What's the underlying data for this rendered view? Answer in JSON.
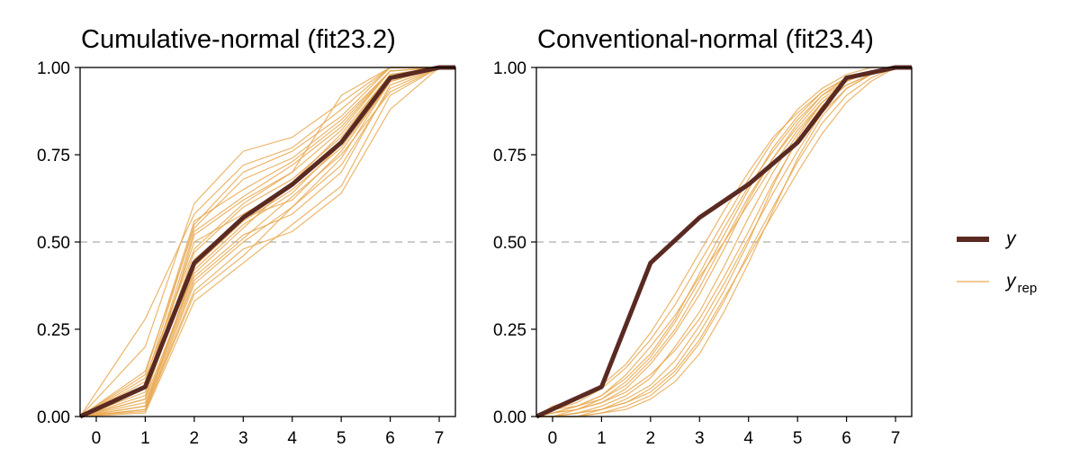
{
  "colors": {
    "y": "#5a2a22",
    "yrep": "#e9a951",
    "ref_line": "#999999"
  },
  "legend": {
    "position": "right",
    "items": [
      {
        "label": "y",
        "key": "y"
      },
      {
        "label": "y",
        "sub": "rep",
        "key": "yrep"
      }
    ]
  },
  "chart_data": [
    {
      "type": "line",
      "title": "Cumulative-normal (fit23.2)",
      "xlim": [
        -0.33,
        7.33
      ],
      "ylim": [
        0,
        1
      ],
      "xticks": [
        "0",
        "1",
        "2",
        "3",
        "4",
        "5",
        "6",
        "7"
      ],
      "yticks": [
        "0.00",
        "0.25",
        "0.50",
        "0.75",
        "1.00"
      ],
      "hline": 0.5,
      "grid": false,
      "y": {
        "x": [
          -0.33,
          1,
          2,
          3,
          4,
          5,
          6,
          7,
          7.33
        ],
        "values": [
          0,
          0.085,
          0.44,
          0.57,
          0.665,
          0.785,
          0.97,
          1,
          1
        ]
      },
      "yrep_x": [
        -0.33,
        1,
        2,
        3,
        4,
        5,
        6,
        7,
        7.33
      ],
      "yrep": [
        [
          0,
          0.05,
          0.52,
          0.62,
          0.7,
          0.82,
          0.99,
          1,
          1
        ],
        [
          0,
          0.02,
          0.38,
          0.5,
          0.6,
          0.74,
          0.96,
          1,
          1
        ],
        [
          0,
          0.1,
          0.55,
          0.7,
          0.76,
          0.86,
          1.0,
          1,
          1
        ],
        [
          0,
          0.03,
          0.42,
          0.55,
          0.64,
          0.78,
          0.97,
          1,
          1
        ],
        [
          0,
          0.2,
          0.61,
          0.76,
          0.8,
          0.9,
          1.0,
          1,
          1
        ],
        [
          0,
          0.01,
          0.33,
          0.44,
          0.55,
          0.66,
          0.92,
          1,
          1
        ],
        [
          0,
          0.07,
          0.47,
          0.6,
          0.68,
          0.8,
          0.98,
          1,
          1
        ],
        [
          0,
          0.12,
          0.56,
          0.65,
          0.73,
          0.84,
          0.99,
          1,
          1
        ],
        [
          0,
          0.04,
          0.4,
          0.52,
          0.58,
          0.7,
          0.95,
          1,
          1
        ],
        [
          0,
          0.02,
          0.36,
          0.48,
          0.53,
          0.64,
          0.88,
          1,
          1
        ],
        [
          0,
          0.09,
          0.5,
          0.58,
          0.66,
          0.79,
          0.97,
          1,
          1
        ],
        [
          0,
          0.28,
          0.58,
          0.72,
          0.77,
          0.88,
          1.0,
          1,
          1
        ],
        [
          0,
          0.06,
          0.45,
          0.57,
          0.62,
          0.76,
          0.96,
          1,
          1
        ],
        [
          0,
          0.015,
          0.35,
          0.46,
          0.6,
          0.72,
          0.94,
          1,
          1
        ],
        [
          0,
          0.08,
          0.53,
          0.63,
          0.72,
          0.83,
          0.99,
          1,
          1
        ],
        [
          0,
          0.05,
          0.41,
          0.54,
          0.67,
          0.81,
          0.98,
          1,
          1
        ],
        [
          0,
          0.11,
          0.48,
          0.61,
          0.7,
          0.92,
          1.0,
          1,
          1
        ],
        [
          0,
          0.03,
          0.39,
          0.51,
          0.63,
          0.75,
          0.93,
          1,
          1
        ],
        [
          0,
          0.13,
          0.54,
          0.68,
          0.74,
          0.85,
          0.99,
          1,
          1
        ],
        [
          0,
          0.02,
          0.43,
          0.56,
          0.65,
          0.77,
          0.96,
          1,
          1
        ]
      ]
    },
    {
      "type": "line",
      "title": "Conventional-normal (fit23.4)",
      "xlim": [
        -0.33,
        7.33
      ],
      "ylim": [
        0,
        1
      ],
      "xticks": [
        "0",
        "1",
        "2",
        "3",
        "4",
        "5",
        "6",
        "7"
      ],
      "yticks": [
        "0.00",
        "0.25",
        "0.50",
        "0.75",
        "1.00"
      ],
      "hline": 0.5,
      "grid": false,
      "y": {
        "x": [
          -0.33,
          1,
          2,
          3,
          4,
          5,
          6,
          7,
          7.33
        ],
        "values": [
          0,
          0.085,
          0.44,
          0.57,
          0.665,
          0.785,
          0.97,
          1,
          1
        ]
      },
      "yrep_x": [
        -0.33,
        0,
        0.5,
        1,
        1.5,
        2,
        2.5,
        3,
        3.5,
        4,
        4.5,
        5,
        5.5,
        6,
        6.5,
        7,
        7.33
      ],
      "yrep": [
        [
          0,
          0.0,
          0.01,
          0.02,
          0.05,
          0.09,
          0.16,
          0.26,
          0.38,
          0.51,
          0.64,
          0.76,
          0.87,
          0.94,
          0.98,
          1,
          1
        ],
        [
          0,
          0.01,
          0.02,
          0.05,
          0.1,
          0.17,
          0.27,
          0.39,
          0.52,
          0.65,
          0.77,
          0.86,
          0.93,
          0.97,
          0.99,
          1,
          1
        ],
        [
          0,
          0.0,
          0.0,
          0.01,
          0.03,
          0.06,
          0.12,
          0.21,
          0.33,
          0.47,
          0.6,
          0.73,
          0.84,
          0.92,
          0.97,
          1,
          1
        ],
        [
          0,
          0.02,
          0.04,
          0.08,
          0.14,
          0.22,
          0.32,
          0.44,
          0.56,
          0.68,
          0.79,
          0.88,
          0.94,
          0.98,
          1.0,
          1,
          1
        ],
        [
          0,
          0.0,
          0.01,
          0.03,
          0.06,
          0.11,
          0.2,
          0.3,
          0.43,
          0.57,
          0.7,
          0.81,
          0.9,
          0.96,
          0.99,
          1,
          1
        ],
        [
          0,
          0.01,
          0.03,
          0.06,
          0.12,
          0.2,
          0.29,
          0.4,
          0.5,
          0.61,
          0.72,
          0.82,
          0.9,
          0.95,
          0.98,
          1,
          1
        ],
        [
          0,
          0.0,
          0.0,
          0.02,
          0.04,
          0.08,
          0.14,
          0.24,
          0.36,
          0.5,
          0.66,
          0.8,
          0.9,
          0.96,
          0.99,
          1,
          1
        ],
        [
          0,
          0.03,
          0.05,
          0.09,
          0.15,
          0.24,
          0.35,
          0.47,
          0.59,
          0.7,
          0.8,
          0.87,
          0.93,
          0.97,
          0.99,
          1,
          1
        ],
        [
          0,
          0.0,
          0.01,
          0.02,
          0.04,
          0.07,
          0.13,
          0.22,
          0.34,
          0.46,
          0.58,
          0.7,
          0.81,
          0.9,
          0.96,
          1,
          1
        ],
        [
          0,
          0.01,
          0.02,
          0.04,
          0.08,
          0.15,
          0.24,
          0.35,
          0.48,
          0.62,
          0.74,
          0.84,
          0.92,
          0.97,
          0.99,
          1,
          1
        ],
        [
          0,
          0.0,
          0.02,
          0.04,
          0.07,
          0.12,
          0.19,
          0.28,
          0.4,
          0.53,
          0.67,
          0.79,
          0.89,
          0.95,
          0.98,
          1,
          1
        ],
        [
          0,
          0.02,
          0.03,
          0.06,
          0.11,
          0.18,
          0.28,
          0.41,
          0.54,
          0.66,
          0.76,
          0.85,
          0.92,
          0.96,
          0.99,
          1,
          1
        ],
        [
          0,
          0.0,
          0.0,
          0.01,
          0.02,
          0.05,
          0.1,
          0.18,
          0.3,
          0.44,
          0.59,
          0.74,
          0.86,
          0.94,
          0.98,
          1,
          1
        ],
        [
          0,
          0.01,
          0.03,
          0.05,
          0.09,
          0.16,
          0.25,
          0.37,
          0.5,
          0.63,
          0.74,
          0.83,
          0.91,
          0.96,
          0.99,
          1,
          1
        ]
      ]
    }
  ]
}
